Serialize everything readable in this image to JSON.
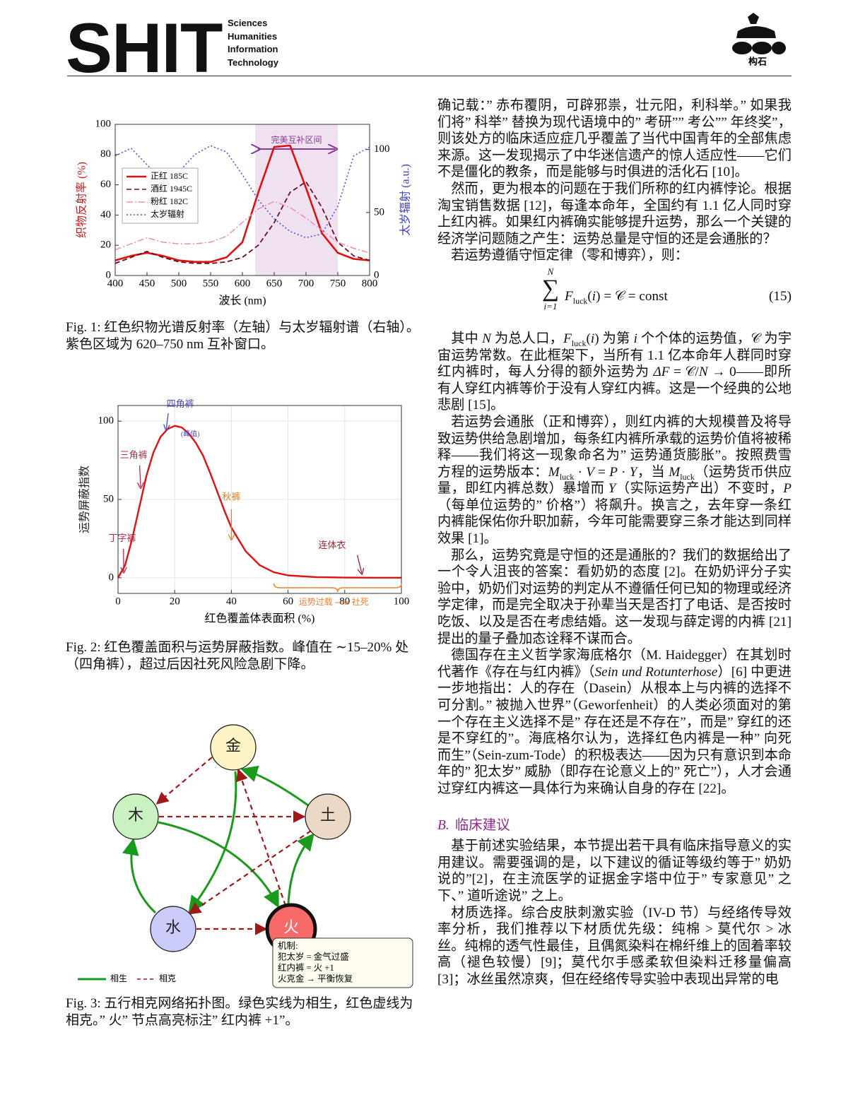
{
  "header": {
    "brand": "SHIT",
    "lines": [
      "Sciences",
      "Humanities",
      "Information",
      "Technology"
    ],
    "logo_text": "构石"
  },
  "chart_data": [
    {
      "type": "line",
      "x_label": "波长 (nm)",
      "y_label": "织物反射率 (%)",
      "y2_label": "太岁辐射 (a.u.)",
      "x": [
        400,
        425,
        450,
        475,
        500,
        525,
        550,
        575,
        600,
        625,
        650,
        675,
        700,
        725,
        750,
        775,
        800
      ],
      "xlim": [
        400,
        800
      ],
      "xticks": [
        400,
        450,
        500,
        550,
        600,
        650,
        700,
        750,
        800
      ],
      "ylim": [
        0,
        100
      ],
      "yticks": [
        0,
        20,
        40,
        60,
        80,
        100
      ],
      "y2lim": [
        0,
        120
      ],
      "y2ticks": [
        0,
        50,
        100
      ],
      "highlight": {
        "range": [
          620,
          750
        ],
        "label": "完美互补区间",
        "color": "#efe1f0",
        "label_color": "#8a3a9a"
      },
      "legend": "upper left",
      "series": [
        {
          "name": "正红 185C",
          "color": "#e01010",
          "style": "solid",
          "values": [
            10,
            13,
            15,
            13,
            10,
            9,
            9,
            12,
            22,
            55,
            85,
            86,
            58,
            28,
            15,
            11,
            10
          ]
        },
        {
          "name": "酒红 1945C",
          "color": "#6e1020",
          "style": "dashed",
          "values": [
            8,
            12,
            16,
            12,
            9,
            8,
            8,
            9,
            12,
            20,
            35,
            55,
            62,
            45,
            22,
            13,
            10
          ]
        },
        {
          "name": "粉红 182C",
          "color": "#f08fb0",
          "style": "dashdot",
          "values": [
            17,
            21,
            25,
            22,
            21,
            21,
            22,
            26,
            35,
            44,
            49,
            45,
            38,
            30,
            22,
            18,
            15
          ]
        },
        {
          "name": "太岁辐射",
          "color": "#5050e0",
          "style": "dotted",
          "axis": "y2",
          "values": [
            95,
            101,
            88,
            75,
            82,
            96,
            103,
            98,
            80,
            60,
            45,
            35,
            30,
            33,
            55,
            95,
            102
          ]
        }
      ]
    },
    {
      "type": "line",
      "x_label": "红色覆盖体表面积 (%)",
      "y_label": "运势屏蔽指数",
      "x": [
        0,
        2.5,
        5,
        7.5,
        10,
        12.5,
        15,
        17.5,
        20,
        22.5,
        25,
        27.5,
        30,
        32.5,
        35,
        37.5,
        40,
        45,
        50,
        55,
        60,
        70,
        80,
        90,
        100
      ],
      "xlim": [
        0,
        100
      ],
      "xticks": [
        0,
        20,
        40,
        60,
        80,
        100
      ],
      "ylim": [
        -10,
        110
      ],
      "yticks": [
        0,
        50,
        100
      ],
      "grid": true,
      "series": [
        {
          "color": "#e01010",
          "style": "solid",
          "values": [
            0,
            8,
            25,
            45,
            65,
            80,
            90,
            95,
            97,
            96,
            92,
            86,
            78,
            67,
            55,
            43,
            32,
            17,
            8,
            3.5,
            1.5,
            0.4,
            0.1,
            0,
            0
          ]
        }
      ],
      "annotations": [
        {
          "text": "四角裤",
          "note": "(峰值)",
          "x": 17,
          "y": 95,
          "color": "#4a4ac0"
        },
        {
          "text": "三角裤",
          "x": 8,
          "y": 58,
          "color": "#b03048"
        },
        {
          "text": "秋裤",
          "x": 40,
          "y": 25,
          "color": "#e08020"
        },
        {
          "text": "丁字裤",
          "x": 2,
          "y": 4,
          "color": "#b03048"
        },
        {
          "text": "连体衣",
          "x": 86,
          "y": 3,
          "color": "#a02030"
        }
      ],
      "brace": {
        "range": [
          55,
          100
        ],
        "labels": [
          "运势过载",
          "社死"
        ],
        "color": "#f08030"
      }
    }
  ],
  "figures": [
    {
      "caption": "Fig. 1: 红色织物光谱反射率（左轴）与太岁辐射谱（右轴）。紫色区域为 620–750 nm 互补窗口。"
    },
    {
      "caption": "Fig. 2: 红色覆盖面积与运势屏蔽指数。峰值在 ∼15–20% 处（四角裤），超过后因社死风险急剧下降。"
    },
    {
      "caption": "Fig. 3: 五行相克网络拓扑图。绿色实线为相生，红色虚线为相克。” 火” 节点高亮标注” 红内裤 +1”。",
      "nodes": [
        "金",
        "木",
        "土",
        "水",
        "火"
      ],
      "legend": [
        "相生",
        "相克"
      ],
      "note": [
        "机制:",
        "犯太岁 = 金气过盛",
        "红内裤 = 火 +1",
        "火克金 → 平衡恢复"
      ]
    }
  ],
  "body": [
    {
      "p": [
        "确记载：” 赤布覆阴，可辟邪祟，壮元阳，利科举。” 如果我们将” 科举” 替换为现代语境中的” 考研”” 考公”” 年终奖”，则该处方的临床适应症几乎覆盖了当代中国青年的全部焦虑来源。这一发现揭示了中华迷信遗产的惊人适应性——它们不是僵化的教条，而是能够与时俱进的活化石 [10]。"
      ]
    },
    {
      "p": [
        "然而，更为根本的问题在于我们所称的红内裤悖论。根据淘宝销售数据 [12]，每逢本命年，全国约有 1.1 亿人同时穿上红内裤。如果红内裤确实能够提升运势，那么一个关键的经济学问题随之产生：运势总量是守恒的还是会通胀的？"
      ]
    },
    {
      "p": [
        "若运势遵循守恒定律（零和博弈），则："
      ]
    },
    {
      "equation": {
        "top": "N",
        "bottom": "i=1",
        "body": [
          {
            "i": "F"
          },
          {
            "sub": "luck"
          },
          "(",
          {
            "i": "i"
          },
          ") = 𝒞 = const"
        ],
        "number": "(15)"
      }
    },
    {
      "p": [
        "其中 ",
        {
          "i": "N"
        },
        " 为总人口，",
        {
          "i": "F"
        },
        {
          "sub": "luck"
        },
        "(",
        {
          "i": "i"
        },
        ") 为第 ",
        {
          "i": "i"
        },
        " 个个体的运势值，𝒞 为宇宙运势常数。在此框架下，当所有 1.1 亿本命年人群同时穿红内裤时，每人分得的额外运势为 ",
        {
          "i": "ΔF"
        },
        " = 𝒞/",
        {
          "i": "N"
        },
        " → 0——即所有人穿红内裤等价于没有人穿红内裤。这是一个经典的公地悲剧 [15]。"
      ]
    },
    {
      "p": [
        "若运势会通胀（正和博弈），则红内裤的大规模普及将导致运势供给急剧增加，每条红内裤所承载的运势价值将被稀释——我们将这一现象命名为” 运势通货膨胀”。按照费雪方程的运势版本：",
        {
          "i": "M"
        },
        {
          "sub": "luck"
        },
        " · ",
        {
          "i": "V"
        },
        " = ",
        {
          "i": "P"
        },
        " · ",
        {
          "i": "Y"
        },
        "，当 ",
        {
          "i": "M"
        },
        {
          "sub": "luck"
        },
        "（运势货币供应量，即红内裤总数）暴增而 ",
        {
          "i": "Y"
        },
        "（实际运势产出）不变时，",
        {
          "i": "P"
        },
        "（每单位运势的” 价格”）将飙升。换言之，去年穿一条红内裤能保佑你升职加薪，今年可能需要穿三条才能达到同样效果 [1]。"
      ]
    },
    {
      "p": [
        "那么，运势究竟是守恒的还是通胀的？我们的数据给出了一个令人沮丧的答案：看奶奶的态度 [2]。在奶奶评分子实验中，奶奶们对运势的判定从不遵循任何已知的物理或经济学定律，而是完全取决于孙辈当天是否打了电话、是否按时吃饭、以及是否在考虑结婚。这一发现与薛定谔的内裤 [21] 提出的量子叠加态诠释不谋而合。"
      ]
    },
    {
      "p": [
        "德国存在主义哲学家海底格尔（M. Haidegger）在其划时代著作《存在与红内裤》（",
        {
          "i": "Sein und Rotunterhose"
        },
        "）[6] 中更进一步地指出：人的存在（Dasein）从根本上与内裤的选择不可分割。” 被抛入世界”（Geworfenheit）的人类必须面对的第一个存在主义选择不是” 存在还是不存在”，而是” 穿红的还是不穿红的”。海底格尔认为，选择红色内裤是一种” 向死而生”（Sein-zum-Tode）的积极表达——因为只有意识到本命年的” 犯太岁” 威胁（即存在论意义上的” 死亡”），人才会通过穿红内裤这一具体行为来确认自身的存在 [22]。"
      ]
    },
    {
      "heading": {
        "label": "B.",
        "title": "临床建议"
      }
    },
    {
      "p": [
        "基于前述实验结果，本节提出若干具有临床指导意义的实用建议。需要强调的是，以下建议的循证等级约等于” 奶奶说的”[2]，在主流医学的证据金字塔中位于” 专家意见” 之下、” 道听途说” 之上。"
      ]
    },
    {
      "p": [
        "材质选择。综合皮肤刺激实验（IV-D 节）与经络传导效率分析，我们推荐以下材质优先级：纯棉 > 莫代尔 > 冰丝。纯棉的透气性最佳，且偶氮染料在棉纤维上的固着率较高（褪色较慢）[9]；莫代尔手感柔软但染料迁移量偏高 [3]；冰丝虽然凉爽，但在经络传导实验中表现出异常的电"
      ]
    }
  ]
}
